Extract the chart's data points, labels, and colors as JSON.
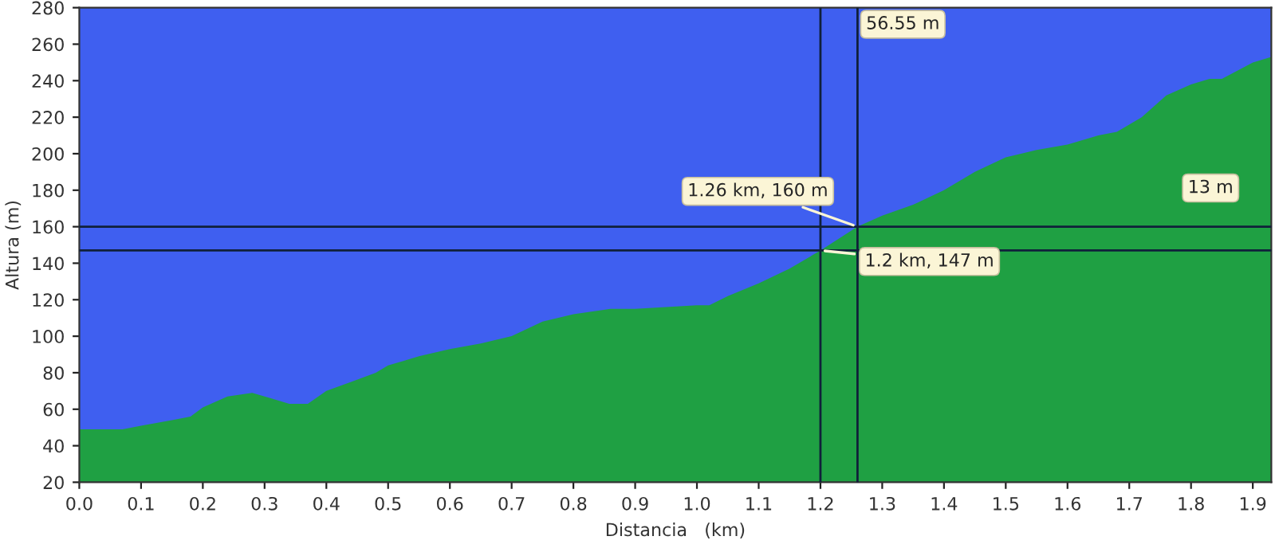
{
  "chart_data": {
    "type": "area",
    "xlabel": "Distancia   (km)",
    "ylabel": "Altura (m)",
    "x": [
      0,
      0.07,
      0.1,
      0.15,
      0.18,
      0.2,
      0.24,
      0.28,
      0.31,
      0.34,
      0.37,
      0.4,
      0.44,
      0.48,
      0.5,
      0.55,
      0.6,
      0.65,
      0.7,
      0.75,
      0.8,
      0.86,
      0.9,
      0.95,
      1.0,
      1.02,
      1.05,
      1.1,
      1.15,
      1.2,
      1.26,
      1.3,
      1.35,
      1.4,
      1.45,
      1.5,
      1.55,
      1.6,
      1.65,
      1.68,
      1.72,
      1.76,
      1.8,
      1.83,
      1.85,
      1.9,
      1.93
    ],
    "series": [
      {
        "color": "#1fa043",
        "values": [
          49,
          49,
          51,
          54,
          56,
          61,
          67,
          69,
          66,
          63,
          63,
          70,
          75,
          80,
          84,
          89,
          93,
          96,
          100,
          108,
          112,
          115,
          115,
          116,
          117,
          117,
          122,
          129,
          137,
          147,
          160,
          166,
          172,
          180,
          190,
          198,
          202,
          205,
          210,
          212,
          220,
          232,
          238,
          241,
          241,
          250,
          253
        ]
      }
    ],
    "xlim": [
      0,
      1.93
    ],
    "ylim": [
      20,
      280
    ],
    "xticks": [
      {
        "value": 0,
        "label": "0.0"
      },
      0.1,
      0.2,
      0.3,
      0.4,
      0.5,
      0.6,
      0.7,
      0.8,
      0.9,
      {
        "value": 1,
        "label": "1.0"
      },
      1.1,
      1.2,
      1.3,
      1.4,
      1.5,
      1.6,
      1.7,
      1.8,
      1.9
    ],
    "yticks": [
      20,
      40,
      60,
      80,
      100,
      120,
      140,
      160,
      180,
      200,
      220,
      240,
      260,
      280
    ],
    "ref_lines": [
      {
        "axis": "x",
        "value": 1.2,
        "color": "#10203a"
      },
      {
        "axis": "x",
        "value": 1.26,
        "color": "#10203a"
      },
      {
        "axis": "y",
        "value": 160,
        "color": "#10203a"
      },
      {
        "axis": "y",
        "value": 147,
        "color": "#10203a"
      }
    ],
    "annotations": [
      "56.55 m",
      {
        "text": "1.26 km, 160 m",
        "x": 1.26,
        "y": 160
      },
      {
        "text": "1.2 km, 147 m",
        "x": 1.2,
        "y": 147
      },
      "13 m"
    ]
  }
}
